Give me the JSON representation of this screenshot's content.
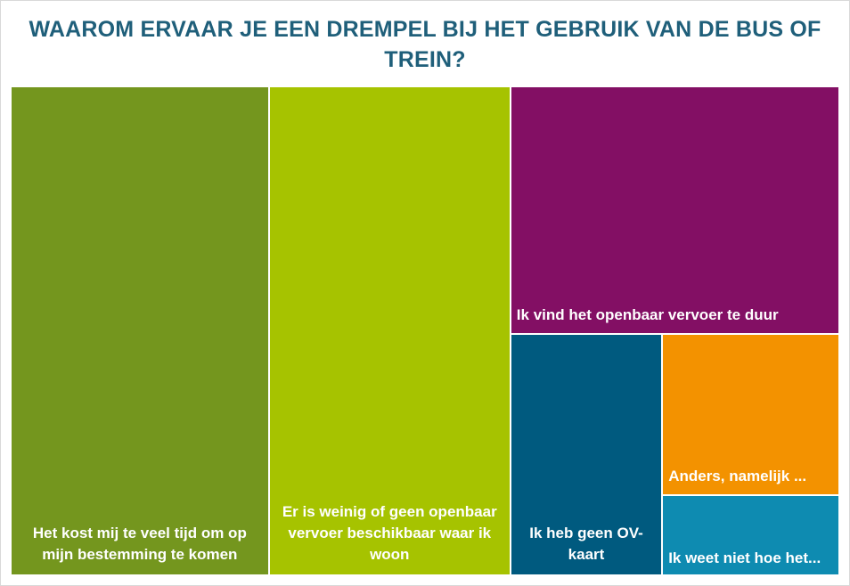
{
  "chart_data": {
    "type": "treemap",
    "title": "WAAROM ERVAAR JE EEN DREMPEL BIJ HET GEBRUIK VAN DE BUS OF TREIN?",
    "items": [
      {
        "label": "Het kost mij te veel tijd om op mijn bestemming te komen",
        "value": 31,
        "color": "#74961e"
      },
      {
        "label": "Er is weinig of geen openbaar vervoer beschikbaar waar ik woon",
        "value": 29,
        "color": "#a6c300"
      },
      {
        "label": "Ik vind het openbaar vervoer te duur",
        "value": 20,
        "color": "#830f64"
      },
      {
        "label": "Ik heb geen OV-kaart",
        "value": 9,
        "color": "#005a7f"
      },
      {
        "label": "Anders, namelijk ...",
        "value": 7,
        "color": "#f39200"
      },
      {
        "label": "Ik weet niet hoe het...",
        "value": 3.5,
        "color": "#0e8bb1"
      }
    ],
    "legend": "none",
    "grid": false
  }
}
